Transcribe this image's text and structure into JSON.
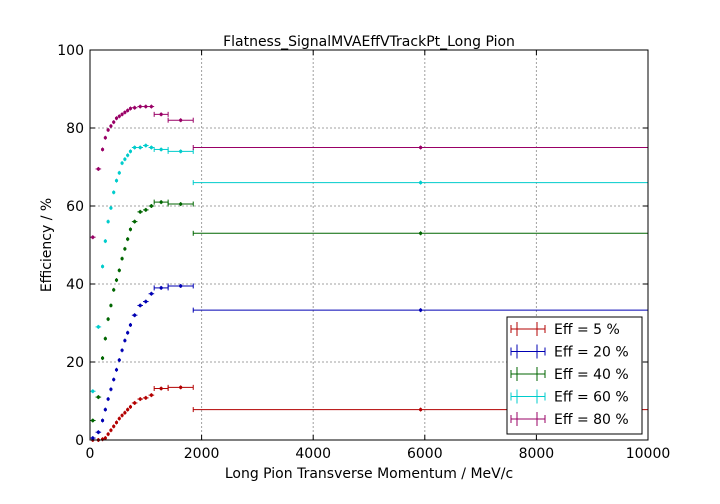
{
  "chart_data": {
    "type": "scatter",
    "title": "Flatness_SignalMVAEffVTrackPt_Long Pion",
    "xlabel": "Long Pion Transverse Momentum / MeV/c",
    "ylabel": "Efficiency / %",
    "xlim": [
      0,
      10000
    ],
    "ylim": [
      0,
      100
    ],
    "xticks": [
      0,
      2000,
      4000,
      6000,
      8000,
      10000
    ],
    "yticks": [
      0,
      20,
      40,
      60,
      80,
      100
    ],
    "grid": true,
    "legend_position": "lower-right",
    "bins": [
      {
        "x": 50,
        "xerr": 50
      },
      {
        "x": 150,
        "xerr": 50
      },
      {
        "x": 225,
        "xerr": 25
      },
      {
        "x": 275,
        "xerr": 25
      },
      {
        "x": 325,
        "xerr": 25
      },
      {
        "x": 375,
        "xerr": 25
      },
      {
        "x": 425,
        "xerr": 25
      },
      {
        "x": 475,
        "xerr": 25
      },
      {
        "x": 525,
        "xerr": 25
      },
      {
        "x": 575,
        "xerr": 25
      },
      {
        "x": 625,
        "xerr": 25
      },
      {
        "x": 675,
        "xerr": 25
      },
      {
        "x": 725,
        "xerr": 25
      },
      {
        "x": 800,
        "xerr": 50
      },
      {
        "x": 900,
        "xerr": 50
      },
      {
        "x": 1000,
        "xerr": 50
      },
      {
        "x": 1100,
        "xerr": 50
      },
      {
        "x": 1275,
        "xerr": 125
      },
      {
        "x": 1625,
        "xerr": 225
      },
      {
        "x": 5925,
        "xerr": 4075
      }
    ],
    "series": [
      {
        "name": "Eff = 5 %",
        "color": "#b30000",
        "values": [
          0.0,
          0.0,
          0.2,
          0.5,
          1.5,
          2.5,
          3.5,
          4.5,
          5.5,
          6.3,
          7.0,
          7.8,
          8.5,
          9.5,
          10.5,
          10.8,
          11.5,
          13.2,
          13.5,
          7.8
        ]
      },
      {
        "name": "Eff = 20 %",
        "color": "#0000b3",
        "values": [
          0.5,
          2.0,
          5.0,
          7.8,
          10.5,
          13.0,
          15.5,
          18.0,
          20.5,
          23.0,
          25.5,
          27.5,
          29.5,
          32.0,
          34.5,
          35.5,
          37.5,
          39.0,
          39.5,
          33.3
        ]
      },
      {
        "name": "Eff = 40 %",
        "color": "#006600",
        "values": [
          5.0,
          11.0,
          21.0,
          26.0,
          31.0,
          34.5,
          38.5,
          41.0,
          43.5,
          46.5,
          49.0,
          51.5,
          54.0,
          56.0,
          58.5,
          59.0,
          60.0,
          61.0,
          60.5,
          53.0
        ]
      },
      {
        "name": "Eff = 60 %",
        "color": "#00cccc",
        "values": [
          12.5,
          29.0,
          44.5,
          51.0,
          56.0,
          59.5,
          63.5,
          66.5,
          68.5,
          71.0,
          72.0,
          73.0,
          74.0,
          75.0,
          75.0,
          75.5,
          75.0,
          74.5,
          74.0,
          66.0
        ]
      },
      {
        "name": "Eff = 80 %",
        "color": "#990066",
        "values": [
          52.0,
          69.5,
          74.5,
          77.5,
          79.5,
          80.5,
          81.5,
          82.5,
          83.0,
          83.5,
          84.0,
          84.5,
          85.0,
          85.2,
          85.5,
          85.5,
          85.5,
          83.5,
          82.0,
          75.0
        ]
      }
    ]
  }
}
